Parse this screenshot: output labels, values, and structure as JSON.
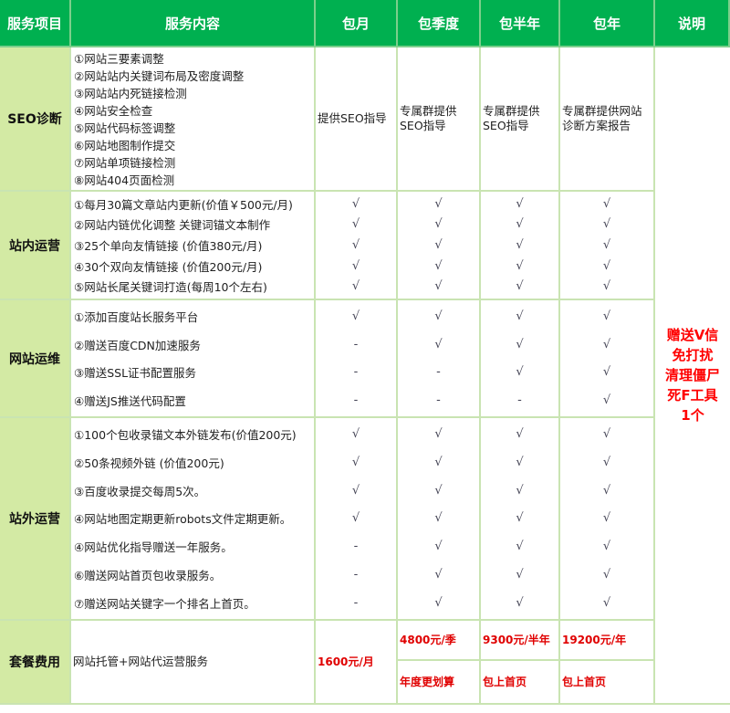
{
  "colors": {
    "header_bg": "#00b050",
    "label_bg": "#d3eaa4",
    "border": "#c9e4b2",
    "price_red": "#e00000"
  },
  "header": [
    "服务项目",
    "服务内容",
    "包月",
    "包季度",
    "包半年",
    "包年",
    "说明"
  ],
  "groups": [
    {
      "label": "SEO诊断",
      "items": [
        "①网站三要素调整",
        "②网站站内关键词布局及密度调整",
        "③网站站内死链接检测",
        "④网站安全检查",
        "⑤网站代码标签调整",
        "⑥网站地图制作提交",
        "⑦网站单项链接检测",
        "⑧网站404页面检测"
      ],
      "plans": [
        "提供SEO指导",
        "专属群提供SEO指导",
        "专属群提供SEO指导",
        "专属群提供网站诊断方案报告"
      ]
    },
    {
      "label": "站内运营",
      "items": [
        "①每月30篇文章站内更新(价值￥500元/月)",
        "②网站内链优化调整 关键词锚文本制作",
        "③25个单向友情链接 (价值380元/月)",
        "④30个双向友情链接 (价值200元/月)",
        "⑤网站长尾关键词打造(每周10个左右)"
      ],
      "plans": [
        [
          "√",
          "√",
          "√",
          "√",
          "√"
        ],
        [
          "√",
          "√",
          "√",
          "√",
          "√"
        ],
        [
          "√",
          "√",
          "√",
          "√",
          "√"
        ],
        [
          "√",
          "√",
          "√",
          "√",
          "√"
        ]
      ]
    },
    {
      "label": "网站运维",
      "items": [
        "①添加百度站长服务平台",
        "②赠送百度CDN加速服务",
        "③赠送SSL证书配置服务",
        "④赠送JS推送代码配置"
      ],
      "plans": [
        [
          "√",
          "-",
          "-",
          "-"
        ],
        [
          "√",
          "√",
          "-",
          "-"
        ],
        [
          "√",
          "√",
          "√",
          "-"
        ],
        [
          "√",
          "√",
          "√",
          "√"
        ]
      ]
    },
    {
      "label": "站外运营",
      "items": [
        "①100个包收录锚文本外链发布(价值200元)",
        "②50条视频外链 (价值200元)",
        "③百度收录提交每周5次。",
        "④网站地图定期更新robots文件定期更新。",
        "④网站优化指导赠送一年服务。",
        "⑥赠送网站首页包收录服务。",
        "⑦赠送网站关键字一个排名上首页。"
      ],
      "plans": [
        [
          "√",
          "√",
          "√",
          "√",
          "-",
          "-",
          "-"
        ],
        [
          "√",
          "√",
          "√",
          "√",
          "√",
          "√",
          "√"
        ],
        [
          "√",
          "√",
          "√",
          "√",
          "√",
          "√",
          "√"
        ],
        [
          "√",
          "√",
          "√",
          "√",
          "√",
          "√",
          "√"
        ]
      ]
    },
    {
      "label": "套餐费用",
      "content": "网站托管+网站代运营服务",
      "monthly": "1600元/月",
      "plans": [
        [
          "4800元/季",
          "年度更划算"
        ],
        [
          "9300元/半年",
          "包上首页"
        ],
        [
          "19200元/年",
          "包上首页"
        ]
      ]
    }
  ],
  "note": [
    "赠送V信",
    "免打扰",
    "清理僵尸",
    "死F工具",
    "1个"
  ]
}
